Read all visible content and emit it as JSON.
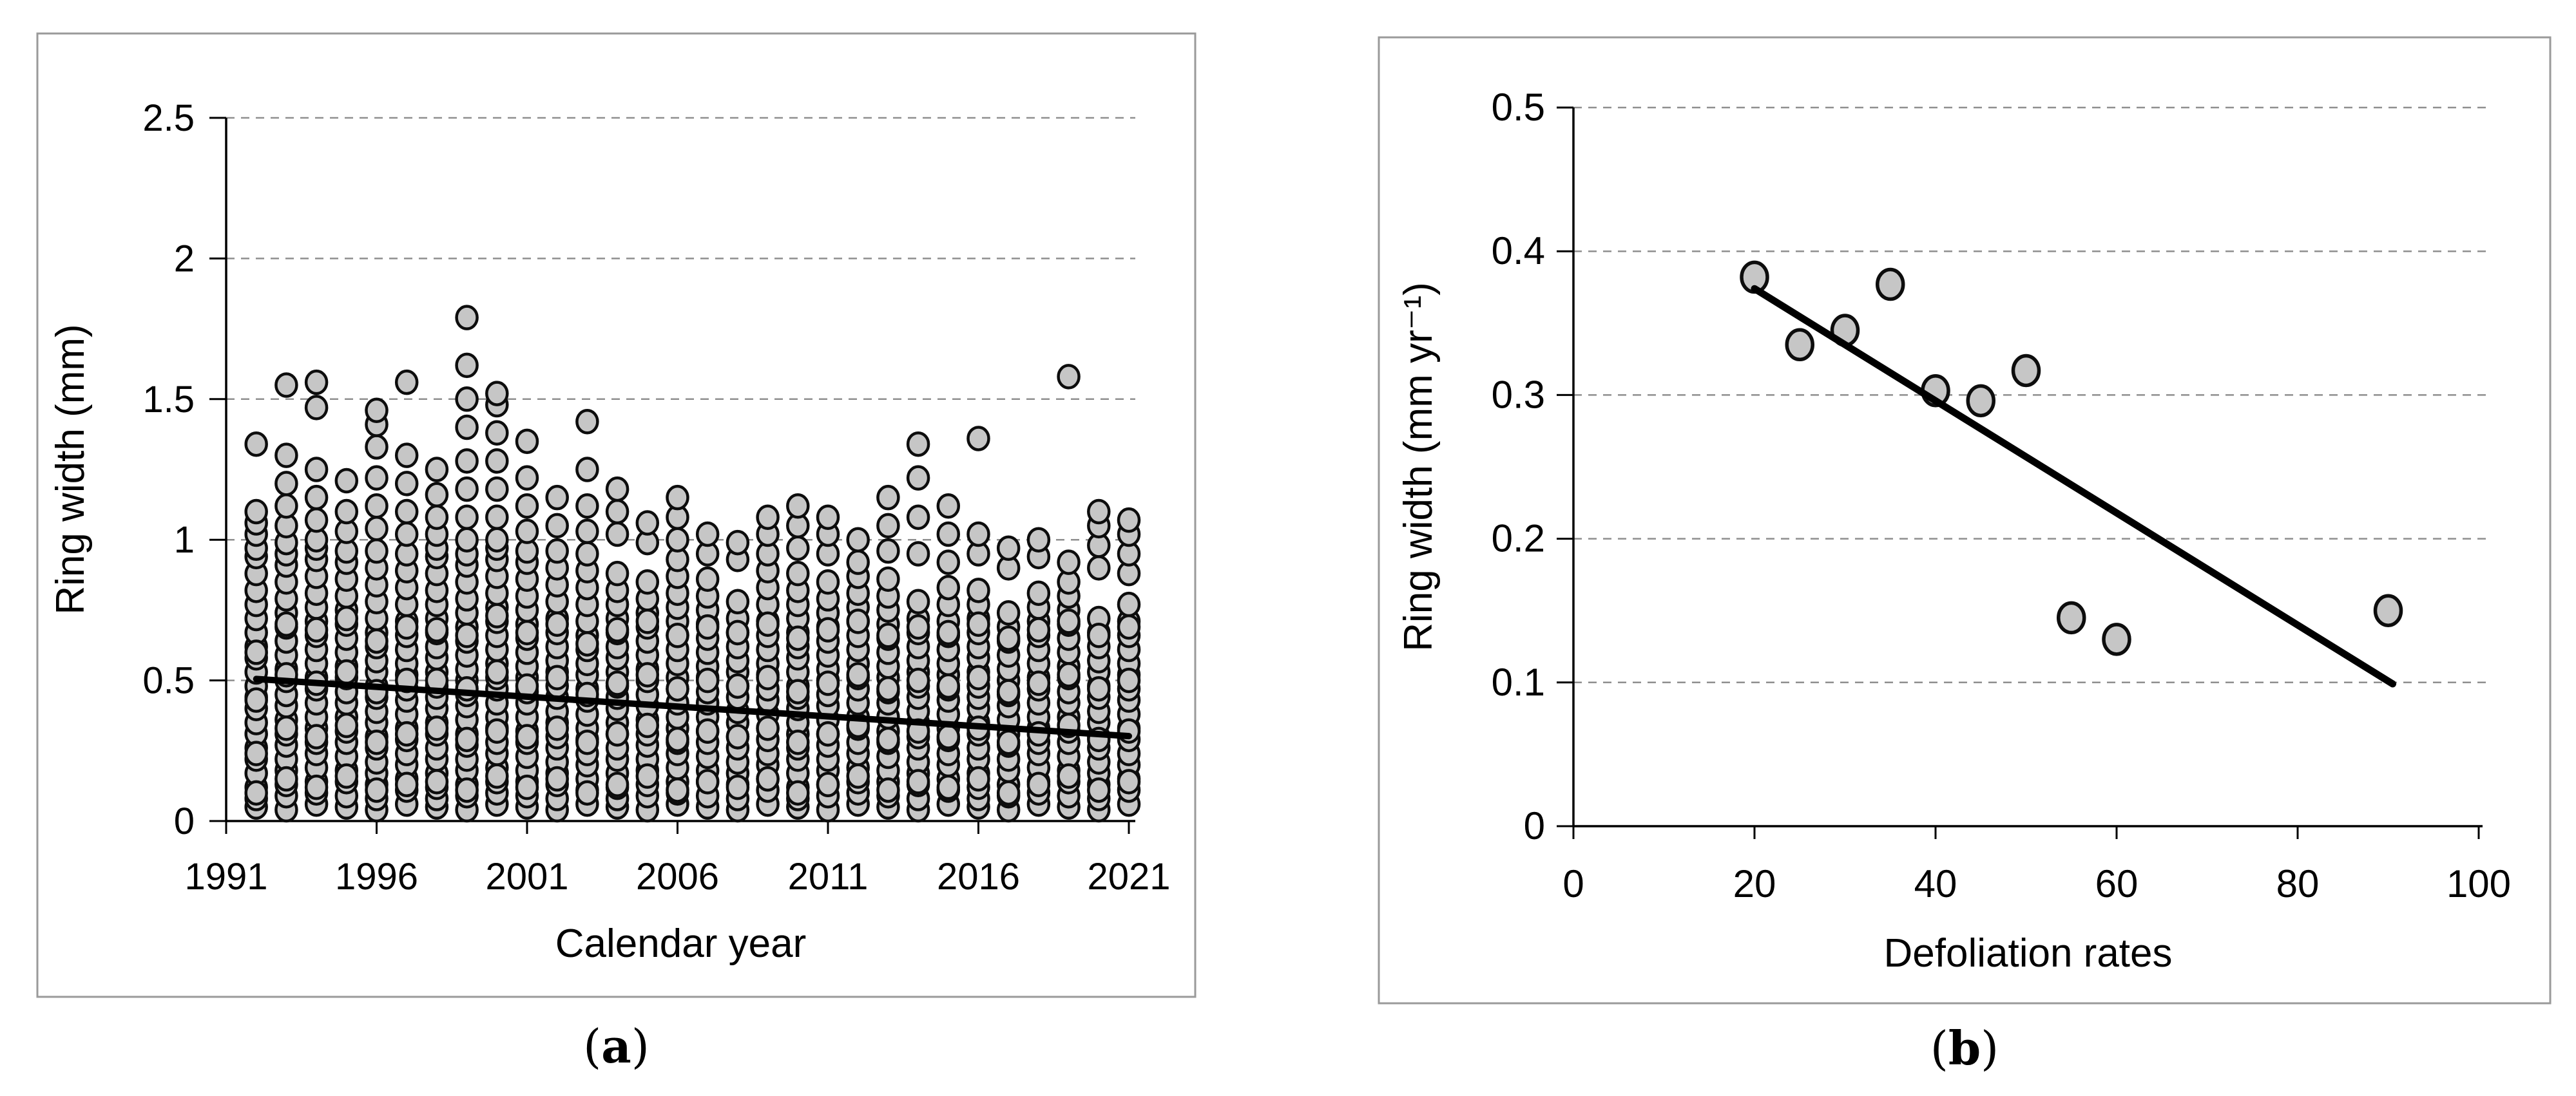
{
  "figure": {
    "panels": [
      {
        "id": "a",
        "caption_open": "(",
        "caption_letter": "a",
        "caption_close": ")"
      },
      {
        "id": "b",
        "caption_open": "(",
        "caption_letter": "b",
        "caption_close": ")"
      }
    ]
  },
  "colors": {
    "marker_fill": "#c6c6c6",
    "marker_stroke": "#0d0d0d",
    "grid": "#8f8f8f",
    "axis": "#000000",
    "trend": "#000000",
    "panel_border": "#9a9a9a",
    "text": "#000000"
  },
  "chart_data": [
    {
      "id": "a",
      "type": "scatter",
      "title": "",
      "xlabel": "Calendar year",
      "ylabel": "Ring width (mm)",
      "xlim": [
        1991,
        2021.2
      ],
      "ylim": [
        0,
        2.5
      ],
      "xticks": [
        1991,
        1996,
        2001,
        2006,
        2011,
        2016,
        2021
      ],
      "yticks": [
        0,
        0.5,
        1,
        1.5,
        2,
        2.5
      ],
      "ytick_labels": [
        "0",
        "0.5",
        "1",
        "1.5",
        "2",
        "2.5"
      ],
      "grid": "horizontal-dashed",
      "legend": "none",
      "trend_line": {
        "x1": 1992,
        "y1": 0.505,
        "x2": 2021,
        "y2": 0.302
      },
      "point_patterns": {
        "PA": [
          0.05,
          0.08,
          0.12,
          0.17,
          0.22,
          0.26,
          0.31,
          0.35,
          0.4,
          0.44,
          0.48,
          0.53,
          0.58,
          0.62,
          0.67,
          0.72,
          0.77,
          0.82,
          0.88,
          0.94
        ],
        "PB": [
          0.04,
          0.09,
          0.13,
          0.18,
          0.22,
          0.27,
          0.31,
          0.36,
          0.41,
          0.45,
          0.5,
          0.54,
          0.59,
          0.64,
          0.69,
          0.74,
          0.79,
          0.85,
          0.91
        ],
        "PC": [
          0.06,
          0.1,
          0.14,
          0.19,
          0.24,
          0.28,
          0.33,
          0.37,
          0.42,
          0.47,
          0.51,
          0.56,
          0.61,
          0.66,
          0.71,
          0.76,
          0.81,
          0.87,
          0.93
        ],
        "PD": [
          0.05,
          0.09,
          0.14,
          0.18,
          0.23,
          0.28,
          0.32,
          0.37,
          0.42,
          0.46,
          0.51,
          0.55,
          0.6,
          0.65,
          0.7,
          0.75,
          0.8,
          0.86,
          0.92
        ],
        "PE": [
          0.04,
          0.08,
          0.13,
          0.17,
          0.21,
          0.26,
          0.3,
          0.35,
          0.39,
          0.44,
          0.48,
          0.53,
          0.57,
          0.62,
          0.67,
          0.72,
          0.78,
          0.84,
          0.9
        ],
        "PF": [
          0.06,
          0.11,
          0.15,
          0.2,
          0.24,
          0.29,
          0.33,
          0.38,
          0.43,
          0.47,
          0.52,
          0.56,
          0.61,
          0.66,
          0.71,
          0.77,
          0.83,
          0.89
        ]
      },
      "columns": [
        {
          "year": 1992,
          "pattern": "PA",
          "n": 20,
          "extra": [
            0.1,
            0.24,
            0.43,
            0.6,
            0.97,
            1.02,
            1.06,
            1.1,
            1.34
          ]
        },
        {
          "year": 1993,
          "pattern": "PB",
          "n": 19,
          "extra": [
            0.15,
            0.33,
            0.52,
            0.7,
            0.95,
            0.99,
            1.05,
            1.12,
            1.2,
            1.3,
            1.55
          ]
        },
        {
          "year": 1994,
          "pattern": "PC",
          "n": 19,
          "extra": [
            0.12,
            0.3,
            0.49,
            0.68,
            0.97,
            1.0,
            1.07,
            1.15,
            1.25,
            1.47,
            1.56
          ]
        },
        {
          "year": 1995,
          "pattern": "PD",
          "n": 19,
          "extra": [
            0.16,
            0.34,
            0.53,
            0.72,
            0.96,
            1.03,
            1.1,
            1.21
          ]
        },
        {
          "year": 1996,
          "pattern": "PE",
          "n": 19,
          "extra": [
            0.11,
            0.28,
            0.46,
            0.64,
            0.96,
            1.04,
            1.12,
            1.22,
            1.33,
            1.41,
            1.46
          ]
        },
        {
          "year": 1997,
          "pattern": "PF",
          "n": 18,
          "extra": [
            0.13,
            0.31,
            0.5,
            0.69,
            0.95,
            1.02,
            1.1,
            1.2,
            1.3,
            1.56
          ]
        },
        {
          "year": 1998,
          "pattern": "PA",
          "n": 20,
          "extra": [
            0.14,
            0.33,
            0.5,
            0.68,
            0.97,
            1.02,
            1.08,
            1.16,
            1.25
          ]
        },
        {
          "year": 1999,
          "pattern": "PB",
          "n": 19,
          "extra": [
            0.11,
            0.29,
            0.47,
            0.66,
            0.95,
            1.0,
            1.08,
            1.18,
            1.28,
            1.4,
            1.5,
            1.62,
            1.79
          ]
        },
        {
          "year": 2000,
          "pattern": "PC",
          "n": 19,
          "extra": [
            0.16,
            0.32,
            0.53,
            0.73,
            0.97,
            1.0,
            1.08,
            1.18,
            1.28,
            1.38,
            1.48,
            1.52
          ]
        },
        {
          "year": 2001,
          "pattern": "PD",
          "n": 19,
          "extra": [
            0.12,
            0.3,
            0.48,
            0.67,
            0.96,
            1.03,
            1.12,
            1.22,
            1.35
          ]
        },
        {
          "year": 2002,
          "pattern": "PE",
          "n": 19,
          "extra": [
            0.15,
            0.33,
            0.51,
            0.7,
            0.96,
            1.05,
            1.15
          ]
        },
        {
          "year": 2003,
          "pattern": "PF",
          "n": 18,
          "extra": [
            0.1,
            0.28,
            0.45,
            0.63,
            0.95,
            1.03,
            1.12,
            1.25,
            1.42
          ]
        },
        {
          "year": 2004,
          "pattern": "PA",
          "n": 19,
          "extra": [
            0.13,
            0.31,
            0.49,
            0.68,
            1.02,
            1.1,
            1.18
          ]
        },
        {
          "year": 2005,
          "pattern": "PB",
          "n": 18,
          "extra": [
            0.16,
            0.34,
            0.52,
            0.71,
            0.99,
            1.06
          ]
        },
        {
          "year": 2006,
          "pattern": "PC",
          "n": 19,
          "extra": [
            0.11,
            0.29,
            0.47,
            0.66,
            1.0,
            1.08,
            1.15
          ]
        },
        {
          "year": 2007,
          "pattern": "PD",
          "n": 18,
          "extra": [
            0.14,
            0.32,
            0.5,
            0.69,
            0.95,
            1.02
          ]
        },
        {
          "year": 2008,
          "pattern": "PE",
          "n": 17,
          "extra": [
            0.12,
            0.3,
            0.48,
            0.67,
            0.93,
            0.99
          ]
        },
        {
          "year": 2009,
          "pattern": "PF",
          "n": 18,
          "extra": [
            0.15,
            0.33,
            0.51,
            0.7,
            0.95,
            1.02,
            1.08
          ]
        },
        {
          "year": 2010,
          "pattern": "PA",
          "n": 19,
          "extra": [
            0.1,
            0.28,
            0.46,
            0.65,
            0.97,
            1.05,
            1.12
          ]
        },
        {
          "year": 2011,
          "pattern": "PB",
          "n": 18,
          "extra": [
            0.13,
            0.31,
            0.49,
            0.68,
            0.95,
            1.02,
            1.08
          ]
        },
        {
          "year": 2012,
          "pattern": "PC",
          "n": 18,
          "extra": [
            0.16,
            0.34,
            0.52,
            0.71,
            0.92,
            1.0
          ]
        },
        {
          "year": 2013,
          "pattern": "PD",
          "n": 18,
          "extra": [
            0.11,
            0.29,
            0.47,
            0.66,
            0.96,
            1.05,
            1.15
          ]
        },
        {
          "year": 2014,
          "pattern": "PE",
          "n": 17,
          "extra": [
            0.14,
            0.32,
            0.5,
            0.69,
            0.95,
            1.08,
            1.22,
            1.34
          ]
        },
        {
          "year": 2015,
          "pattern": "PF",
          "n": 17,
          "extra": [
            0.12,
            0.3,
            0.48,
            0.67,
            0.92,
            1.02,
            1.12
          ]
        },
        {
          "year": 2016,
          "pattern": "PA",
          "n": 18,
          "extra": [
            0.15,
            0.33,
            0.51,
            0.7,
            0.95,
            1.02,
            1.36
          ]
        },
        {
          "year": 2017,
          "pattern": "PB",
          "n": 16,
          "extra": [
            0.1,
            0.28,
            0.46,
            0.65,
            0.9,
            0.97
          ]
        },
        {
          "year": 2018,
          "pattern": "PC",
          "n": 17,
          "extra": [
            0.13,
            0.31,
            0.49,
            0.68,
            0.94,
            1.0
          ]
        },
        {
          "year": 2019,
          "pattern": "PD",
          "n": 17,
          "extra": [
            0.16,
            0.34,
            0.52,
            0.71,
            0.85,
            0.92,
            1.58
          ]
        },
        {
          "year": 2020,
          "pattern": "PE",
          "n": 16,
          "extra": [
            0.11,
            0.29,
            0.47,
            0.66,
            0.9,
            0.98,
            1.05,
            1.1
          ]
        },
        {
          "year": 2021,
          "pattern": "PF",
          "n": 16,
          "extra": [
            0.14,
            0.32,
            0.5,
            0.69,
            0.88,
            0.95,
            1.02,
            1.07
          ]
        }
      ]
    },
    {
      "id": "b",
      "type": "scatter",
      "title": "",
      "xlabel": "Defoliation rates",
      "ylabel": "Ring width (mm yr⁻¹)",
      "xlim": [
        0,
        102
      ],
      "ylim": [
        0,
        0.5
      ],
      "xticks": [
        0,
        20,
        40,
        60,
        80,
        100
      ],
      "yticks": [
        0,
        0.1,
        0.2,
        0.3,
        0.4,
        0.5
      ],
      "ytick_labels": [
        "0",
        "0.1",
        "0.2",
        "0.3",
        "0.4",
        "0.5"
      ],
      "grid": "horizontal-dashed",
      "legend": "none",
      "points": [
        [
          20,
          0.382
        ],
        [
          25,
          0.335
        ],
        [
          30,
          0.345
        ],
        [
          35,
          0.377
        ],
        [
          40,
          0.303
        ],
        [
          45,
          0.296
        ],
        [
          50,
          0.317
        ],
        [
          55,
          0.145
        ],
        [
          60,
          0.13
        ],
        [
          90,
          0.15
        ]
      ],
      "trend_line": {
        "x1": 20,
        "y1": 0.374,
        "x2": 90.5,
        "y2": 0.099
      }
    }
  ]
}
